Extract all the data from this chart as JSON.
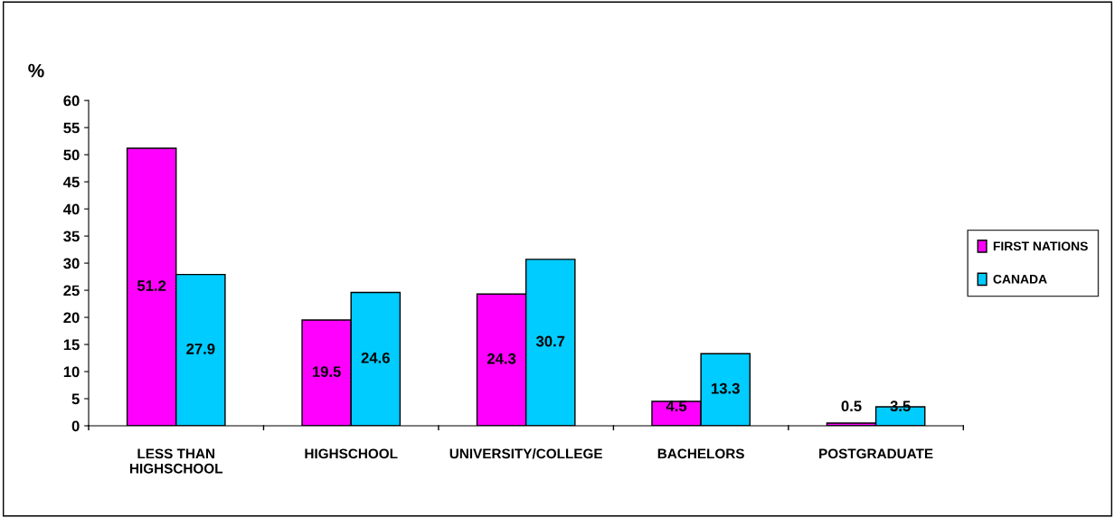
{
  "chart_data": {
    "type": "bar",
    "ylabel": "%",
    "categories": [
      "LESS THAN\nHIGHSCHOOL",
      "HIGHSCHOOL",
      "UNIVERSITY/COLLEGE",
      "BACHELORS",
      "POSTGRADUATE"
    ],
    "series": [
      {
        "name": "FIRST NATIONS",
        "color": "#ff00ff",
        "values": [
          51.2,
          19.5,
          24.3,
          4.5,
          0.5
        ]
      },
      {
        "name": "CANADA",
        "color": "#00ccff",
        "values": [
          27.9,
          24.6,
          30.7,
          13.3,
          3.5
        ]
      }
    ],
    "ylim": [
      0,
      60
    ],
    "yticks": [
      0,
      5,
      10,
      15,
      20,
      25,
      30,
      35,
      40,
      45,
      50,
      55,
      60
    ],
    "data_labels": true,
    "legend": "right",
    "grid": false
  }
}
